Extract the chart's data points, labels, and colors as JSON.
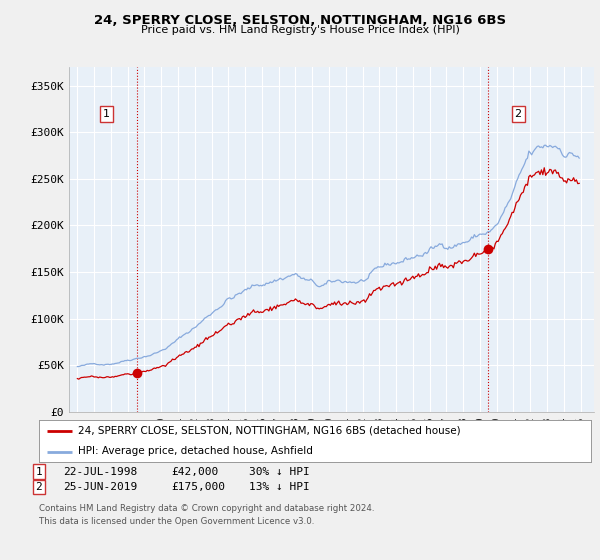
{
  "title_line1": "24, SPERRY CLOSE, SELSTON, NOTTINGHAM, NG16 6BS",
  "title_line2": "Price paid vs. HM Land Registry's House Price Index (HPI)",
  "ylabel_ticks": [
    "£0",
    "£50K",
    "£100K",
    "£150K",
    "£200K",
    "£250K",
    "£300K",
    "£350K"
  ],
  "ytick_values": [
    0,
    50000,
    100000,
    150000,
    200000,
    250000,
    300000,
    350000
  ],
  "ylim": [
    0,
    370000
  ],
  "xlim_start": 1994.5,
  "xlim_end": 2025.8,
  "legend_line1": "24, SPERRY CLOSE, SELSTON, NOTTINGHAM, NG16 6BS (detached house)",
  "legend_line2": "HPI: Average price, detached house, Ashfield",
  "sale1_price": 42000,
  "sale1_year": 1998.55,
  "sale2_price": 175000,
  "sale2_year": 2019.48,
  "footer": "Contains HM Land Registry data © Crown copyright and database right 2024.\nThis data is licensed under the Open Government Licence v3.0.",
  "line_color_red": "#cc0000",
  "line_color_blue": "#88aadd",
  "vline_color": "#cc0000",
  "background_color": "#f0f0f0",
  "plot_background": "#e8f0f8",
  "grid_color": "#ffffff"
}
